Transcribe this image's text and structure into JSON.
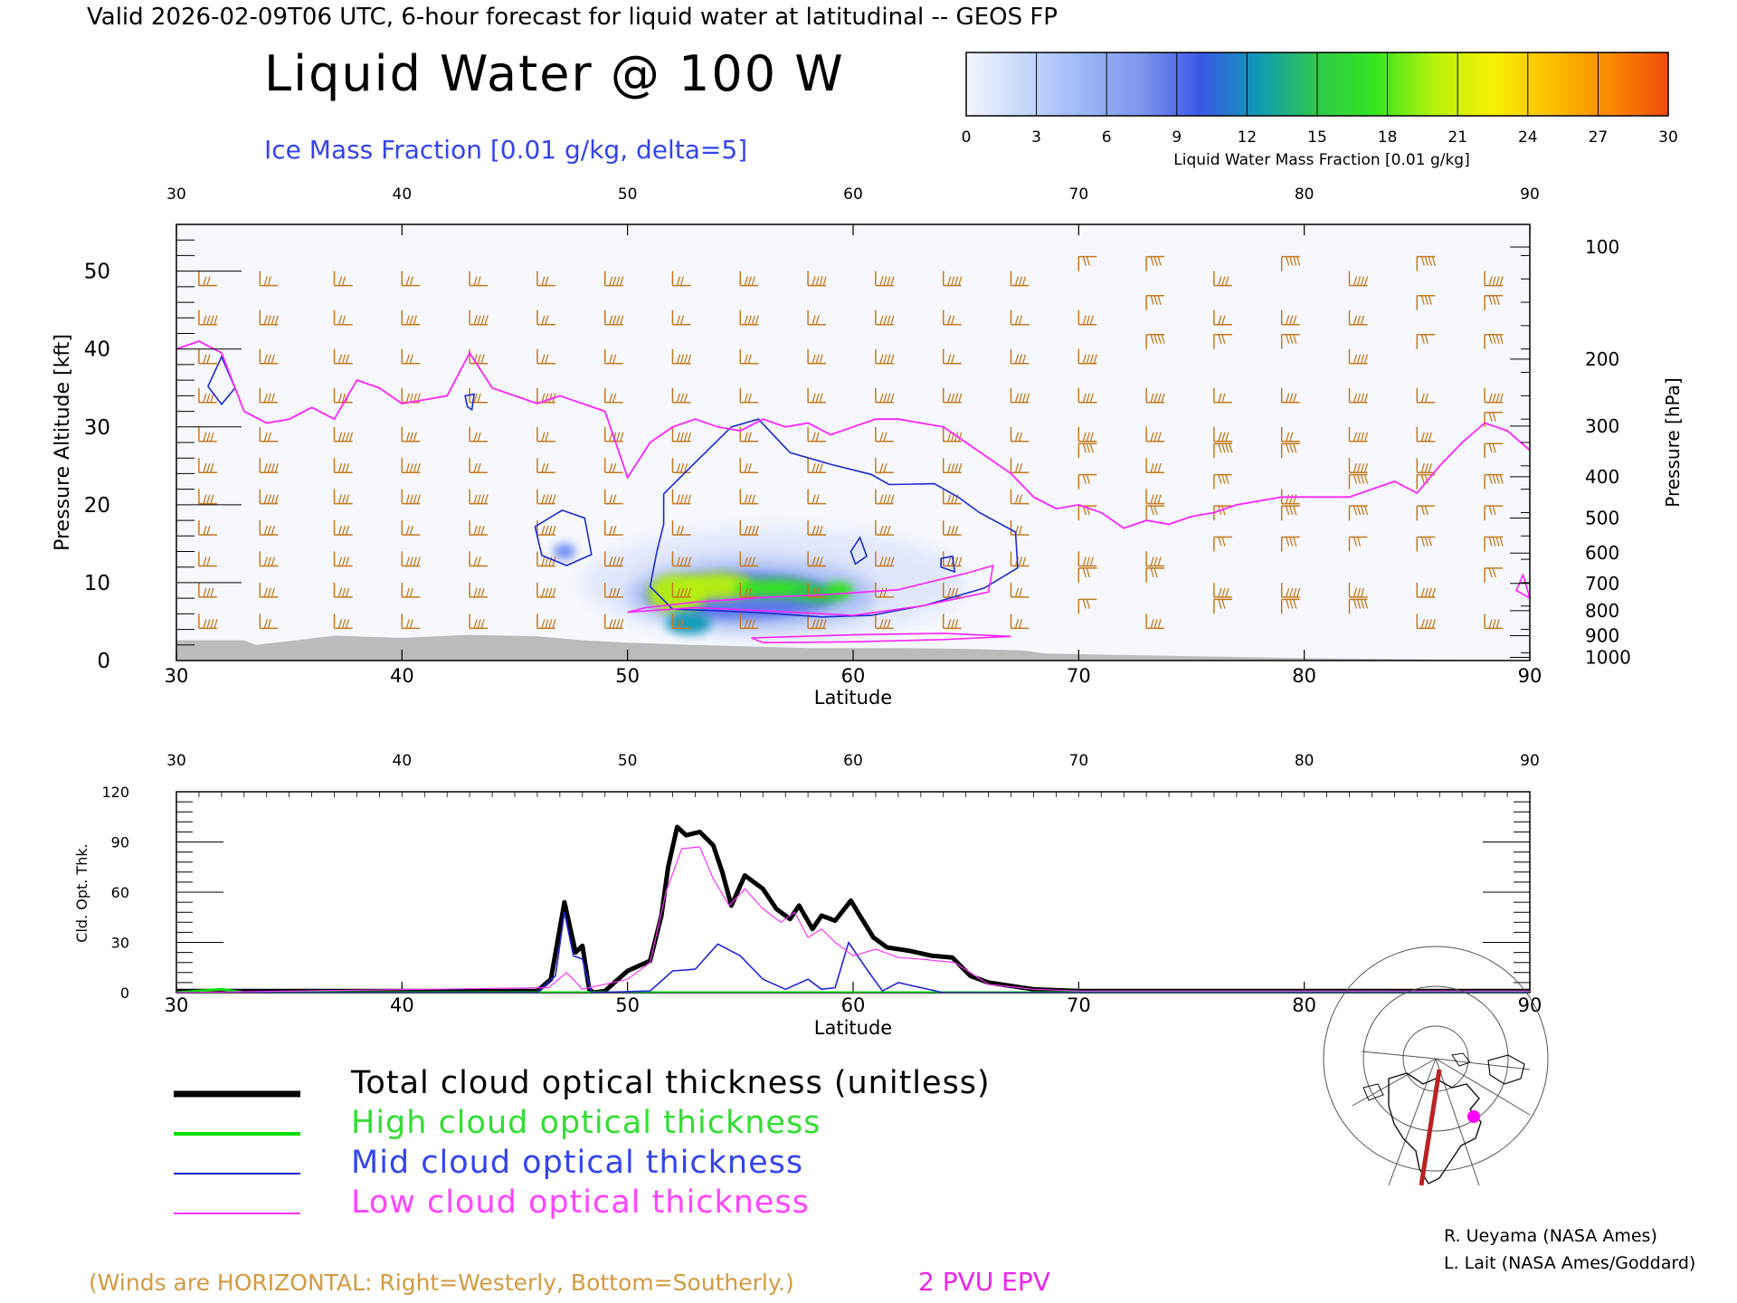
{
  "header": {
    "valid_line": "Valid 2026-02-09T06 UTC, 6-hour forecast for liquid water at latitudinal -- GEOS FP",
    "main_title": "Liquid Water @ 100 W",
    "ice_label": "Ice Mass Fraction [0.01 g/kg, delta=5]"
  },
  "colorbar": {
    "ticks": [
      "0",
      "3",
      "6",
      "9",
      "12",
      "15",
      "18",
      "21",
      "24",
      "27",
      "30"
    ],
    "label": "Liquid Water Mass Fraction [0.01 g/kg]",
    "colors": [
      "#f4f6ff",
      "#c7d6fb",
      "#9db7f6",
      "#7d95ee",
      "#3b58e6",
      "#109ab5",
      "#2fc84a",
      "#34e61f",
      "#b8f20c",
      "#f6f004",
      "#fbbf00",
      "#fa8a00",
      "#f24a0c"
    ]
  },
  "colors": {
    "wind": "#c6781c",
    "epv": "#ff22ff",
    "ice": "#1a2ad0",
    "terrain": "#bbbbbb",
    "total": "#000000",
    "high": "#00dd00",
    "mid": "#2222dd",
    "low": "#ff33ff"
  },
  "chart_data": [
    {
      "type": "heatmap",
      "title": "Liquid Water @ 100 W",
      "xlabel": "Latitude",
      "ylabel": "Pressure Altitude [kft]",
      "y2label": "Pressure [hPa]",
      "xlim": [
        30,
        90
      ],
      "ylim": [
        0,
        56
      ],
      "xticks": [
        "30",
        "40",
        "50",
        "60",
        "70",
        "80",
        "90"
      ],
      "yticks": [
        "0",
        "10",
        "20",
        "30",
        "40",
        "50"
      ],
      "pressure_ticks": [
        {
          "label": "100",
          "kft": 53.1
        },
        {
          "label": "200",
          "kft": 38.7
        },
        {
          "label": "300",
          "kft": 30.1
        },
        {
          "label": "400",
          "kft": 23.6
        },
        {
          "label": "500",
          "kft": 18.3
        },
        {
          "label": "600",
          "kft": 13.8
        },
        {
          "label": "700",
          "kft": 9.9
        },
        {
          "label": "800",
          "kft": 6.4
        },
        {
          "label": "900",
          "kft": 3.2
        },
        {
          "label": "1000",
          "kft": 0.4
        }
      ],
      "epv_2pvu_line": [
        [
          30,
          40
        ],
        [
          31,
          41
        ],
        [
          32,
          39.5
        ],
        [
          33,
          32
        ],
        [
          34,
          30.5
        ],
        [
          35,
          31
        ],
        [
          36,
          32.5
        ],
        [
          37,
          31
        ],
        [
          38,
          36
        ],
        [
          39,
          35
        ],
        [
          40,
          33
        ],
        [
          41,
          33.5
        ],
        [
          42,
          34
        ],
        [
          43,
          39.5
        ],
        [
          44,
          35
        ],
        [
          45,
          34
        ],
        [
          46,
          33
        ],
        [
          47,
          34
        ],
        [
          48,
          33
        ],
        [
          49,
          32
        ],
        [
          50,
          23.5
        ],
        [
          51,
          28
        ],
        [
          52,
          30
        ],
        [
          53,
          31
        ],
        [
          54,
          30
        ],
        [
          55,
          29.5
        ],
        [
          56,
          31
        ],
        [
          57,
          30
        ],
        [
          58,
          30.5
        ],
        [
          59,
          29
        ],
        [
          60,
          30
        ],
        [
          61,
          31
        ],
        [
          62,
          31
        ],
        [
          63,
          30.5
        ],
        [
          64,
          30
        ],
        [
          65,
          28
        ],
        [
          66,
          26
        ],
        [
          67,
          24
        ],
        [
          68,
          21
        ],
        [
          69,
          19.5
        ],
        [
          70,
          20
        ],
        [
          71,
          19
        ],
        [
          72,
          17
        ],
        [
          73,
          18
        ],
        [
          74,
          17.5
        ],
        [
          75,
          18.5
        ],
        [
          76,
          19
        ],
        [
          77,
          20
        ],
        [
          78,
          20.5
        ],
        [
          79,
          21
        ],
        [
          80,
          21
        ],
        [
          81,
          21
        ],
        [
          82,
          21
        ],
        [
          83,
          22
        ],
        [
          84,
          23
        ],
        [
          85,
          21.5
        ],
        [
          86,
          25
        ],
        [
          87,
          28
        ],
        [
          88,
          30.5
        ],
        [
          89,
          29.5
        ],
        [
          90,
          27
        ]
      ],
      "ice_contours": [
        [
          [
            51.6,
            21.4
          ],
          [
            53.2,
            26.0
          ],
          [
            54.6,
            30.0
          ],
          [
            55.8,
            31.0
          ],
          [
            57.2,
            26.7
          ],
          [
            59.0,
            25.2
          ],
          [
            60.8,
            23.9
          ],
          [
            61.6,
            22.6
          ],
          [
            63.6,
            22.7
          ],
          [
            64.7,
            20.9
          ],
          [
            65.6,
            19.0
          ],
          [
            67.2,
            16.5
          ],
          [
            67.3,
            11.9
          ],
          [
            65.8,
            9.3
          ],
          [
            63.2,
            7.1
          ],
          [
            60.8,
            5.8
          ],
          [
            58.6,
            5.6
          ],
          [
            56.1,
            6.1
          ],
          [
            54.0,
            6.4
          ],
          [
            52.0,
            6.6
          ],
          [
            51.0,
            9.5
          ],
          [
            51.3,
            14.0
          ],
          [
            51.6,
            17.5
          ]
        ],
        [
          [
            45.9,
            17.2
          ],
          [
            47.1,
            19.3
          ],
          [
            48.1,
            18.3
          ],
          [
            48.4,
            13.6
          ],
          [
            47.3,
            12.2
          ],
          [
            46.2,
            13.5
          ]
        ],
        [
          [
            32.0,
            39.0
          ],
          [
            32.6,
            35.0
          ],
          [
            32.0,
            32.9
          ],
          [
            31.4,
            35.2
          ]
        ],
        [
          [
            42.8,
            34.0
          ],
          [
            43.2,
            34.2
          ],
          [
            43.1,
            32.2
          ],
          [
            42.9,
            32.6
          ]
        ],
        [
          [
            60.3,
            15.8
          ],
          [
            60.6,
            13.4
          ],
          [
            60.1,
            12.4
          ],
          [
            59.9,
            14.0
          ]
        ],
        [
          [
            63.9,
            13.1
          ],
          [
            64.4,
            13.4
          ],
          [
            64.5,
            11.4
          ],
          [
            63.9,
            12.0
          ]
        ]
      ],
      "lower_pv_contours": [
        [
          [
            50,
            6.2
          ],
          [
            53,
            6.8
          ],
          [
            56,
            6.4
          ],
          [
            60,
            5.8
          ],
          [
            63,
            7.0
          ],
          [
            66,
            8.8
          ],
          [
            66.2,
            12.2
          ],
          [
            65,
            11.2
          ],
          [
            62,
            9.1
          ],
          [
            59,
            8.5
          ],
          [
            56,
            8.1
          ],
          [
            53,
            7.5
          ],
          [
            50.8,
            6.8
          ]
        ],
        [
          [
            55.5,
            2.9
          ],
          [
            60,
            3.3
          ],
          [
            64,
            3.5
          ],
          [
            67,
            3.1
          ],
          [
            64,
            2.7
          ],
          [
            60,
            2.4
          ],
          [
            56,
            2.3
          ]
        ],
        [
          [
            90,
            8.0
          ],
          [
            89.7,
            11.0
          ],
          [
            89.4,
            9.0
          ]
        ]
      ],
      "terrain": [
        [
          30,
          2.6
        ],
        [
          33,
          2.6
        ],
        [
          33.5,
          2.0
        ],
        [
          35,
          2.5
        ],
        [
          37,
          3.2
        ],
        [
          40,
          2.9
        ],
        [
          43,
          3.3
        ],
        [
          46,
          3.1
        ],
        [
          48,
          2.6
        ],
        [
          50,
          2.3
        ],
        [
          53,
          2.0
        ],
        [
          58,
          1.6
        ],
        [
          62,
          1.6
        ],
        [
          65,
          1.5
        ],
        [
          67.5,
          1.3
        ],
        [
          68.5,
          0.9
        ],
        [
          80,
          0.3
        ],
        [
          90,
          0.0
        ]
      ],
      "liquid_blobs": [
        {
          "lat": 52.2,
          "kft": 8.6,
          "rx": 1.3,
          "ry": 2.5,
          "value": 20
        },
        {
          "lat": 54.0,
          "kft": 9.6,
          "rx": 1.6,
          "ry": 1.7,
          "value": 21
        },
        {
          "lat": 56.5,
          "kft": 9.3,
          "rx": 1.8,
          "ry": 1.2,
          "value": 18
        },
        {
          "lat": 58.5,
          "kft": 8.5,
          "rx": 1.3,
          "ry": 1.1,
          "value": 14
        },
        {
          "lat": 52.7,
          "kft": 4.8,
          "rx": 1.0,
          "ry": 1.4,
          "value": 13
        },
        {
          "lat": 59.4,
          "kft": 9.2,
          "rx": 0.6,
          "ry": 0.9,
          "value": 18
        }
      ]
    },
    {
      "type": "line",
      "xlabel": "Latitude",
      "ylabel": "Cld. Opt. Thk.",
      "xlim": [
        30,
        90
      ],
      "ylim": [
        0,
        120
      ],
      "xticks": [
        "30",
        "40",
        "50",
        "60",
        "70",
        "80",
        "90"
      ],
      "yticks": [
        "0",
        "30",
        "60",
        "90",
        "120"
      ],
      "series": [
        {
          "name": "Total cloud optical thickness (unitless)",
          "key": "total",
          "width": 5,
          "points": [
            [
              30,
              1
            ],
            [
              46,
              1
            ],
            [
              46.6,
              8
            ],
            [
              47.2,
              54
            ],
            [
              47.7,
              24
            ],
            [
              48.0,
              28
            ],
            [
              48.3,
              2
            ],
            [
              48.5,
              0
            ],
            [
              49.0,
              1
            ],
            [
              49.5,
              7
            ],
            [
              50,
              13
            ],
            [
              51,
              19
            ],
            [
              51.5,
              46
            ],
            [
              51.8,
              75
            ],
            [
              52.2,
              99
            ],
            [
              52.6,
              94
            ],
            [
              53.2,
              96
            ],
            [
              53.8,
              88
            ],
            [
              54.2,
              72
            ],
            [
              54.6,
              52
            ],
            [
              55.2,
              70
            ],
            [
              56,
              62
            ],
            [
              56.6,
              50
            ],
            [
              57.2,
              44
            ],
            [
              57.6,
              52
            ],
            [
              58.2,
              38
            ],
            [
              58.6,
              46
            ],
            [
              59.2,
              43
            ],
            [
              59.9,
              55
            ],
            [
              60.3,
              46
            ],
            [
              60.9,
              33
            ],
            [
              61.5,
              27
            ],
            [
              62.5,
              25
            ],
            [
              63.5,
              22
            ],
            [
              64.4,
              21
            ],
            [
              65.2,
              10
            ],
            [
              66,
              6
            ],
            [
              68,
              2
            ],
            [
              70,
              1
            ],
            [
              90,
              1
            ]
          ]
        },
        {
          "name": "High cloud optical thickness",
          "key": "high",
          "width": 3,
          "points": [
            [
              30,
              0
            ],
            [
              32,
              2
            ],
            [
              33,
              0
            ],
            [
              90,
              0
            ]
          ]
        },
        {
          "name": "Mid cloud optical thickness",
          "key": "mid",
          "width": 1.6,
          "points": [
            [
              30,
              0
            ],
            [
              46,
              0
            ],
            [
              46.8,
              10
            ],
            [
              47.2,
              48
            ],
            [
              47.6,
              22
            ],
            [
              48.0,
              20
            ],
            [
              48.4,
              0
            ],
            [
              51,
              1
            ],
            [
              52,
              13
            ],
            [
              53,
              14
            ],
            [
              54,
              29
            ],
            [
              55,
              22
            ],
            [
              56,
              8
            ],
            [
              57,
              2
            ],
            [
              58,
              8
            ],
            [
              58.6,
              2
            ],
            [
              59.2,
              3
            ],
            [
              59.8,
              30
            ],
            [
              60.6,
              14
            ],
            [
              61.3,
              1
            ],
            [
              62,
              6
            ],
            [
              63,
              3
            ],
            [
              64,
              0
            ],
            [
              90,
              0
            ]
          ]
        },
        {
          "name": "Low cloud optical thickness",
          "key": "low",
          "width": 1.2,
          "points": [
            [
              30,
              0
            ],
            [
              46.5,
              3
            ],
            [
              47.3,
              12
            ],
            [
              48.0,
              2
            ],
            [
              50,
              8
            ],
            [
              51,
              18
            ],
            [
              51.7,
              60
            ],
            [
              52.4,
              86
            ],
            [
              53.2,
              87
            ],
            [
              53.8,
              68
            ],
            [
              54.5,
              52
            ],
            [
              55.2,
              62
            ],
            [
              56,
              50
            ],
            [
              56.8,
              42
            ],
            [
              57.4,
              48
            ],
            [
              58.0,
              33
            ],
            [
              58.6,
              38
            ],
            [
              59.2,
              30
            ],
            [
              60,
              22
            ],
            [
              61,
              26
            ],
            [
              62,
              21
            ],
            [
              63,
              20
            ],
            [
              64.5,
              18
            ],
            [
              66,
              5
            ],
            [
              68,
              2
            ],
            [
              70,
              1
            ],
            [
              90,
              1
            ]
          ]
        }
      ]
    }
  ],
  "legend": {
    "total": "Total cloud optical thickness (unitless)",
    "high": "High cloud optical thickness",
    "mid": "Mid cloud optical thickness",
    "low": "Low cloud optical thickness"
  },
  "footer": {
    "winds_note": "(Winds are HORIZONTAL: Right=Westerly, Bottom=Southerly.)",
    "epv_label": "2 PVU EPV",
    "credit_1": "R. Ueyama (NASA Ames)",
    "credit_2": "L. Lait (NASA Ames/Goddard)"
  },
  "inset_map": {
    "icon": "north-polar-map-icon",
    "track_color": "#bb2222",
    "marker_color": "#ff00ff"
  }
}
